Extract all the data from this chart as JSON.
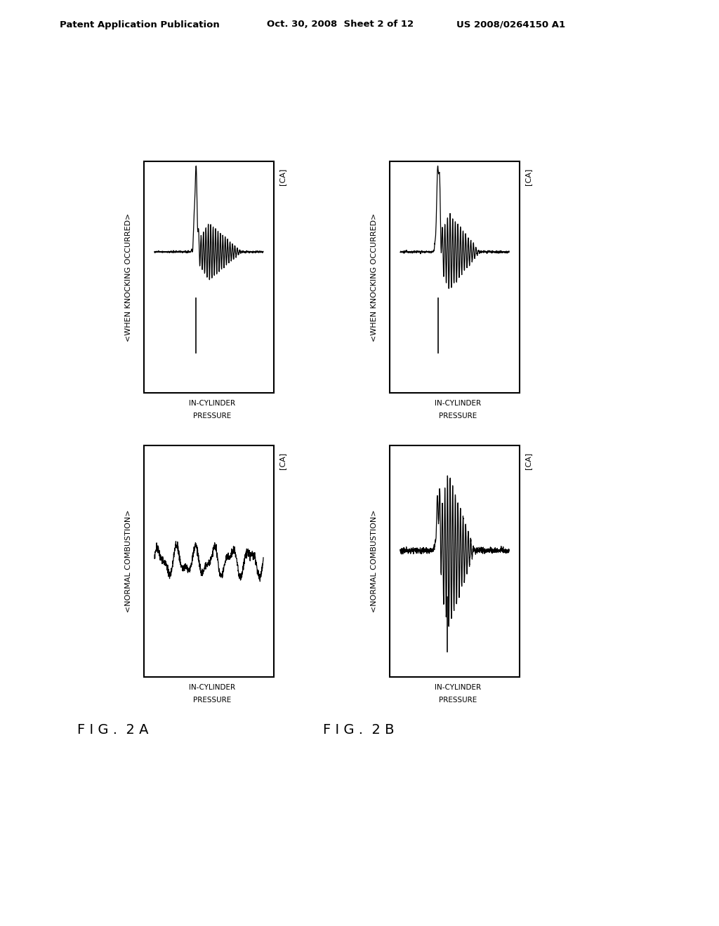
{
  "title_header_left": "Patent Application Publication",
  "title_header_mid": "Oct. 30, 2008  Sheet 2 of 12",
  "title_header_right": "US 2008/0264150 A1",
  "fig2a_label": "F I G .  2 A",
  "fig2b_label": "F I G .  2 B",
  "normal_combustion_label": "<NORMAL COMBUSTION>",
  "knocking_occurred_label": "<WHEN KNOCKING OCCURRED>",
  "in_cylinder_pressure_label1": "IN-CYLINDER",
  "in_cylinder_pressure_label2": "PRESSURE",
  "ca_label": "[CA]",
  "bg_color": "#ffffff",
  "line_color": "#000000",
  "text_color": "#000000"
}
